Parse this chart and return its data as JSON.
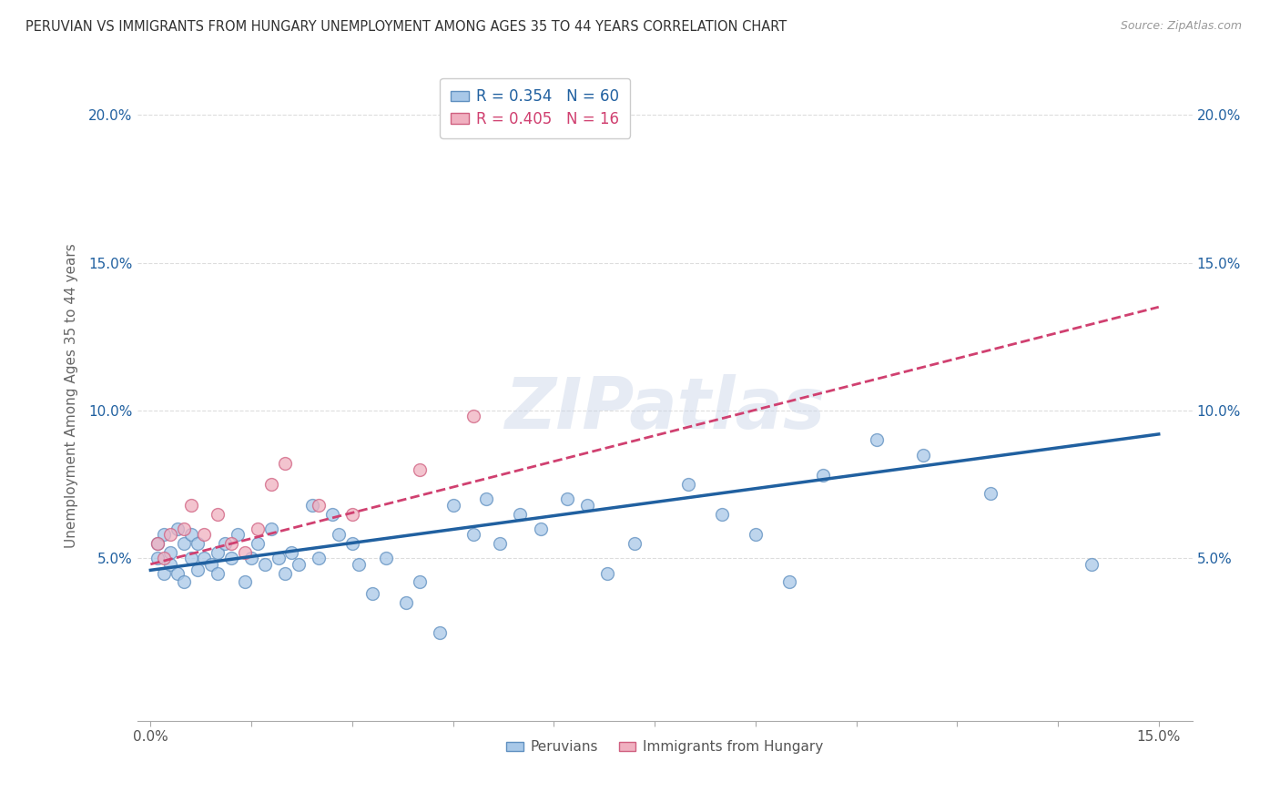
{
  "title": "PERUVIAN VS IMMIGRANTS FROM HUNGARY UNEMPLOYMENT AMONG AGES 35 TO 44 YEARS CORRELATION CHART",
  "source": "Source: ZipAtlas.com",
  "ylabel": "Unemployment Among Ages 35 to 44 years",
  "xlim": [
    -0.002,
    0.155
  ],
  "ylim": [
    -0.005,
    0.215
  ],
  "xtick_vals": [
    0.0,
    0.015,
    0.03,
    0.045,
    0.06,
    0.075,
    0.09,
    0.105,
    0.12,
    0.135,
    0.15
  ],
  "xtick_show": [
    0.0,
    0.15
  ],
  "ytick_vals": [
    0.0,
    0.05,
    0.1,
    0.15,
    0.2
  ],
  "ytick_show": [
    0.05,
    0.1,
    0.15,
    0.2
  ],
  "legend1_label": "R = 0.354   N = 60",
  "legend2_label": "R = 0.405   N = 16",
  "legend_peruvians": "Peruvians",
  "legend_hungary": "Immigrants from Hungary",
  "blue_scatter_color": "#a8c8e8",
  "blue_scatter_edge": "#6090c0",
  "pink_scatter_color": "#f0b0c0",
  "pink_scatter_edge": "#d06080",
  "blue_line_color": "#2060a0",
  "pink_line_color": "#d04070",
  "watermark": "ZIPatlas",
  "peruvians_x": [
    0.001,
    0.001,
    0.002,
    0.002,
    0.003,
    0.003,
    0.004,
    0.004,
    0.005,
    0.005,
    0.006,
    0.006,
    0.007,
    0.007,
    0.008,
    0.009,
    0.01,
    0.01,
    0.011,
    0.012,
    0.013,
    0.014,
    0.015,
    0.016,
    0.017,
    0.018,
    0.019,
    0.02,
    0.021,
    0.022,
    0.024,
    0.025,
    0.027,
    0.028,
    0.03,
    0.031,
    0.033,
    0.035,
    0.038,
    0.04,
    0.043,
    0.045,
    0.048,
    0.05,
    0.052,
    0.055,
    0.058,
    0.062,
    0.065,
    0.068,
    0.072,
    0.08,
    0.085,
    0.09,
    0.095,
    0.1,
    0.108,
    0.115,
    0.125,
    0.14
  ],
  "peruvians_y": [
    0.055,
    0.05,
    0.058,
    0.045,
    0.052,
    0.048,
    0.06,
    0.045,
    0.055,
    0.042,
    0.05,
    0.058,
    0.046,
    0.055,
    0.05,
    0.048,
    0.052,
    0.045,
    0.055,
    0.05,
    0.058,
    0.042,
    0.05,
    0.055,
    0.048,
    0.06,
    0.05,
    0.045,
    0.052,
    0.048,
    0.068,
    0.05,
    0.065,
    0.058,
    0.055,
    0.048,
    0.038,
    0.05,
    0.035,
    0.042,
    0.025,
    0.068,
    0.058,
    0.07,
    0.055,
    0.065,
    0.06,
    0.07,
    0.068,
    0.045,
    0.055,
    0.075,
    0.065,
    0.058,
    0.042,
    0.078,
    0.09,
    0.085,
    0.072,
    0.048
  ],
  "hungary_x": [
    0.001,
    0.002,
    0.003,
    0.005,
    0.006,
    0.008,
    0.01,
    0.012,
    0.014,
    0.016,
    0.018,
    0.02,
    0.025,
    0.03,
    0.04,
    0.048
  ],
  "hungary_y": [
    0.055,
    0.05,
    0.058,
    0.06,
    0.068,
    0.058,
    0.065,
    0.055,
    0.052,
    0.06,
    0.075,
    0.082,
    0.068,
    0.065,
    0.08,
    0.098
  ],
  "blue_line_x0": 0.0,
  "blue_line_y0": 0.046,
  "blue_line_x1": 0.15,
  "blue_line_y1": 0.092,
  "pink_line_x0": 0.0,
  "pink_line_y0": 0.048,
  "pink_line_x1": 0.15,
  "pink_line_y1": 0.135
}
